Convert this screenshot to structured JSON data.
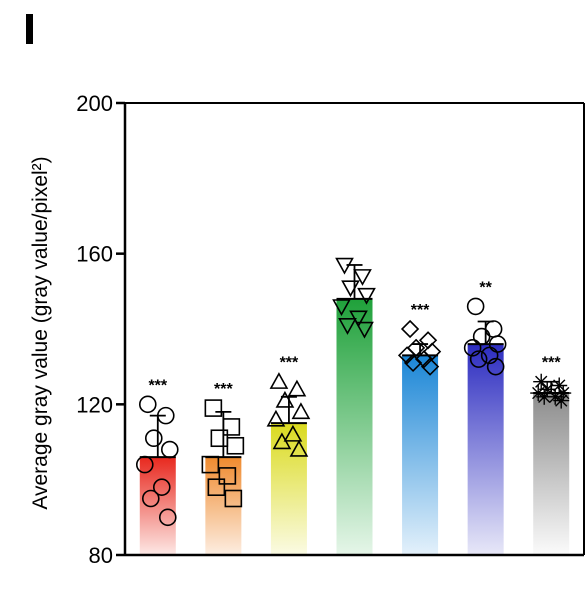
{
  "panel_label": "I",
  "chart_data": {
    "type": "bar",
    "ylabel": "Average gray value (gray value/pixel²)",
    "ylim": [
      80,
      200
    ],
    "yticks": [
      80,
      120,
      160,
      200
    ],
    "categories": [
      "red",
      "orange",
      "yellow",
      "green",
      "blue",
      "indigo",
      "gray"
    ],
    "values": [
      106,
      106,
      115,
      148,
      133,
      136,
      123
    ],
    "errors": [
      11,
      12,
      7,
      9,
      3,
      6,
      3
    ],
    "significance": [
      "***",
      "***",
      "***",
      "",
      "***",
      "**",
      "***"
    ],
    "bar_colors": [
      [
        "#e8281e",
        "#fde9e6"
      ],
      [
        "#ef8a2e",
        "#fdeee2"
      ],
      [
        "#dada1e",
        "#fbfbe4"
      ],
      [
        "#1fa13a",
        "#e6f6e9"
      ],
      [
        "#1b86d6",
        "#e4f1fb"
      ],
      [
        "#2c2cc0",
        "#e8e8f8"
      ],
      [
        "#8c8c8c",
        "#fbfbfb"
      ]
    ],
    "marker_shapes": [
      "circle",
      "square",
      "triangle",
      "triangle-down",
      "diamond",
      "circle",
      "star"
    ],
    "points": [
      [
        120,
        117,
        111,
        108,
        104,
        98,
        95,
        90
      ],
      [
        119,
        114,
        111,
        109,
        104,
        101,
        98,
        95
      ],
      [
        126,
        124,
        121,
        118,
        116,
        112,
        110,
        108
      ],
      [
        157,
        154,
        151,
        149,
        146,
        143,
        141,
        140
      ],
      [
        140,
        137,
        135,
        134,
        133,
        132,
        131,
        130
      ],
      [
        146,
        140,
        138,
        136,
        135,
        133,
        132,
        130
      ],
      [
        126,
        125,
        124,
        123,
        123,
        122,
        122,
        121
      ]
    ]
  }
}
